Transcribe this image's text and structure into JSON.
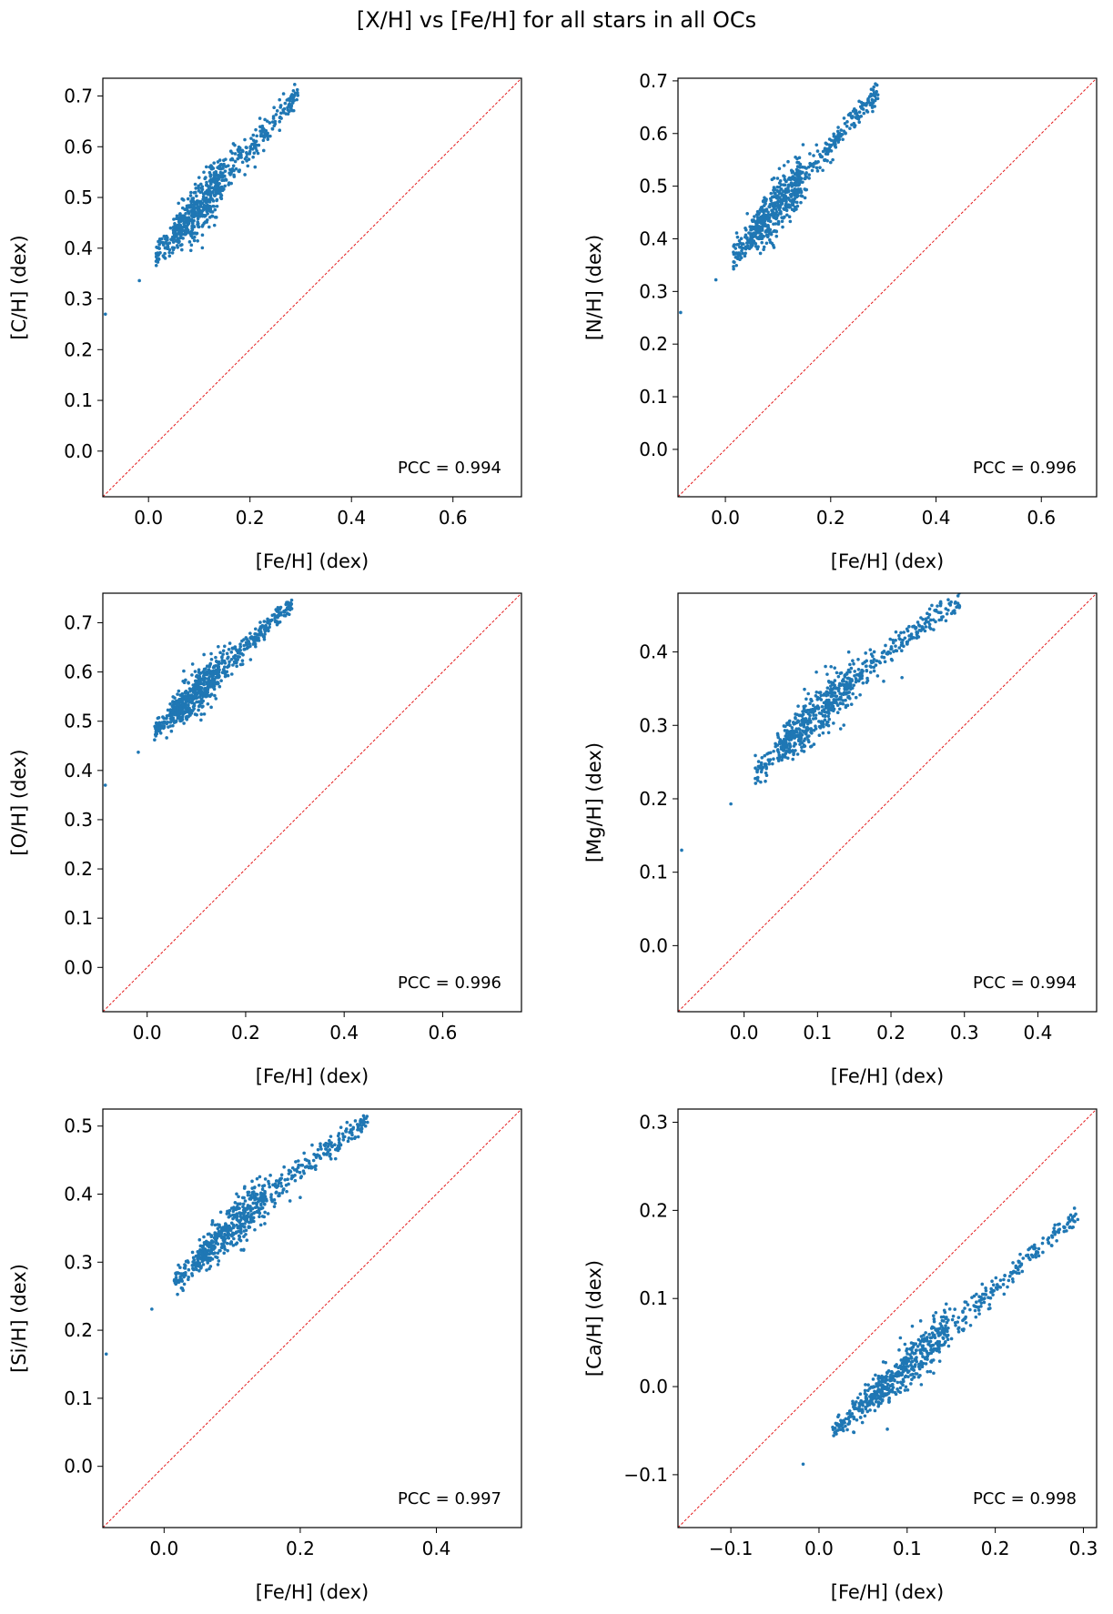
{
  "title": "[X/H] vs [Fe/H] for all stars in all OCs",
  "chart_data": [
    {
      "type": "scatter",
      "xlabel": "[Fe/H] (dex)",
      "ylabel": "[C/H] (dex)",
      "xlim": [
        -0.09,
        0.735
      ],
      "ylim": [
        -0.09,
        0.735
      ],
      "xticks": [
        "0.0",
        "0.2",
        "0.4",
        "0.6"
      ],
      "xtick_values": [
        0,
        0.2,
        0.4,
        0.6
      ],
      "yticks": [
        "0.0",
        "0.1",
        "0.2",
        "0.3",
        "0.4",
        "0.5",
        "0.6",
        "0.7"
      ],
      "ytick_values": [
        0,
        0.1,
        0.2,
        0.3,
        0.4,
        0.5,
        0.6,
        0.7
      ],
      "annotation": "PCC = 0.994",
      "reference_line": "y = x",
      "trend": {
        "x_start": 0.015,
        "y_start": 0.385,
        "x_end": 0.295,
        "y_end": 0.705,
        "spread": 0.012
      },
      "outliers": [
        [
          -0.018,
          0.336
        ],
        [
          -0.085,
          0.27
        ],
        [
          0.21,
          0.56
        ],
        [
          0.19,
          0.545
        ]
      ]
    },
    {
      "type": "scatter",
      "xlabel": "[Fe/H] (dex)",
      "ylabel": "[N/H] (dex)",
      "xlim": [
        -0.09,
        0.705
      ],
      "ylim": [
        -0.09,
        0.705
      ],
      "xticks": [
        "0.0",
        "0.2",
        "0.4",
        "0.6"
      ],
      "xtick_values": [
        0,
        0.2,
        0.4,
        0.6
      ],
      "yticks": [
        "0.0",
        "0.1",
        "0.2",
        "0.3",
        "0.4",
        "0.5",
        "0.6",
        "0.7"
      ],
      "ytick_values": [
        0,
        0.1,
        0.2,
        0.3,
        0.4,
        0.5,
        0.6,
        0.7
      ],
      "annotation": "PCC = 0.996",
      "reference_line": "y = x",
      "trend": {
        "x_start": 0.015,
        "y_start": 0.365,
        "x_end": 0.29,
        "y_end": 0.68,
        "spread": 0.012
      },
      "outliers": [
        [
          -0.018,
          0.322
        ],
        [
          -0.085,
          0.26
        ],
        [
          0.2,
          0.545
        ],
        [
          0.185,
          0.53
        ]
      ]
    },
    {
      "type": "scatter",
      "xlabel": "[Fe/H] (dex)",
      "ylabel": "[O/H] (dex)",
      "xlim": [
        -0.09,
        0.76
      ],
      "ylim": [
        -0.09,
        0.76
      ],
      "xticks": [
        "0.0",
        "0.2",
        "0.4",
        "0.6"
      ],
      "xtick_values": [
        0,
        0.2,
        0.4,
        0.6
      ],
      "yticks": [
        "0.0",
        "0.1",
        "0.2",
        "0.3",
        "0.4",
        "0.5",
        "0.6",
        "0.7"
      ],
      "ytick_values": [
        0,
        0.1,
        0.2,
        0.3,
        0.4,
        0.5,
        0.6,
        0.7
      ],
      "annotation": "PCC = 0.996",
      "reference_line": "y = x",
      "trend": {
        "x_start": 0.015,
        "y_start": 0.48,
        "x_end": 0.295,
        "y_end": 0.74,
        "spread": 0.01
      },
      "outliers": [
        [
          -0.018,
          0.437
        ],
        [
          -0.085,
          0.37
        ],
        [
          0.21,
          0.625
        ],
        [
          0.19,
          0.615
        ]
      ]
    },
    {
      "type": "scatter",
      "xlabel": "[Fe/H] (dex)",
      "ylabel": "[Mg/H] (dex)",
      "xlim": [
        -0.09,
        0.48
      ],
      "ylim": [
        -0.09,
        0.48
      ],
      "xticks": [
        "0.0",
        "0.1",
        "0.2",
        "0.3",
        "0.4"
      ],
      "xtick_values": [
        0,
        0.1,
        0.2,
        0.3,
        0.4
      ],
      "yticks": [
        "0.0",
        "0.1",
        "0.2",
        "0.3",
        "0.4"
      ],
      "ytick_values": [
        0,
        0.1,
        0.2,
        0.3,
        0.4
      ],
      "annotation": "PCC = 0.994",
      "reference_line": "y = x",
      "trend": {
        "x_start": 0.015,
        "y_start": 0.235,
        "x_end": 0.295,
        "y_end": 0.47,
        "spread": 0.008,
        "bend": 0.5
      },
      "outliers": [
        [
          -0.018,
          0.193
        ],
        [
          -0.085,
          0.13
        ],
        [
          0.215,
          0.365
        ],
        [
          0.19,
          0.36
        ]
      ]
    },
    {
      "type": "scatter",
      "xlabel": "[Fe/H] (dex)",
      "ylabel": "[Si/H] (dex)",
      "xlim": [
        -0.09,
        0.525
      ],
      "ylim": [
        -0.09,
        0.525
      ],
      "xticks": [
        "0.0",
        "0.2",
        "0.4"
      ],
      "xtick_values": [
        0,
        0.2,
        0.4
      ],
      "yticks": [
        "0.0",
        "0.1",
        "0.2",
        "0.3",
        "0.4",
        "0.5"
      ],
      "ytick_values": [
        0,
        0.1,
        0.2,
        0.3,
        0.4,
        0.5
      ],
      "annotation": "PCC = 0.997",
      "reference_line": "y = x",
      "trend": {
        "x_start": 0.015,
        "y_start": 0.27,
        "x_end": 0.3,
        "y_end": 0.51,
        "spread": 0.008,
        "bend": 0.4
      },
      "outliers": [
        [
          -0.018,
          0.231
        ],
        [
          -0.085,
          0.165
        ],
        [
          0.2,
          0.395
        ],
        [
          0.185,
          0.39
        ]
      ]
    },
    {
      "type": "scatter",
      "xlabel": "[Fe/H] (dex)",
      "ylabel": "[Ca/H] (dex)",
      "xlim": [
        -0.16,
        0.315
      ],
      "ylim": [
        -0.16,
        0.315
      ],
      "xticks": [
        "−0.1",
        "0.0",
        "0.1",
        "0.2",
        "0.3"
      ],
      "xtick_values": [
        -0.1,
        0,
        0.1,
        0.2,
        0.3
      ],
      "yticks": [
        "−0.1",
        "0.0",
        "0.1",
        "0.2",
        "0.3"
      ],
      "ytick_values": [
        -0.1,
        0,
        0.1,
        0.2,
        0.3
      ],
      "annotation": "PCC = 0.998",
      "reference_line": "y = x",
      "trend": {
        "x_start": 0.015,
        "y_start": -0.052,
        "x_end": 0.295,
        "y_end": 0.197,
        "spread": 0.006
      },
      "outliers": [
        [
          -0.018,
          -0.088
        ],
        [
          0.21,
          0.105
        ],
        [
          0.18,
          0.09
        ]
      ]
    }
  ]
}
